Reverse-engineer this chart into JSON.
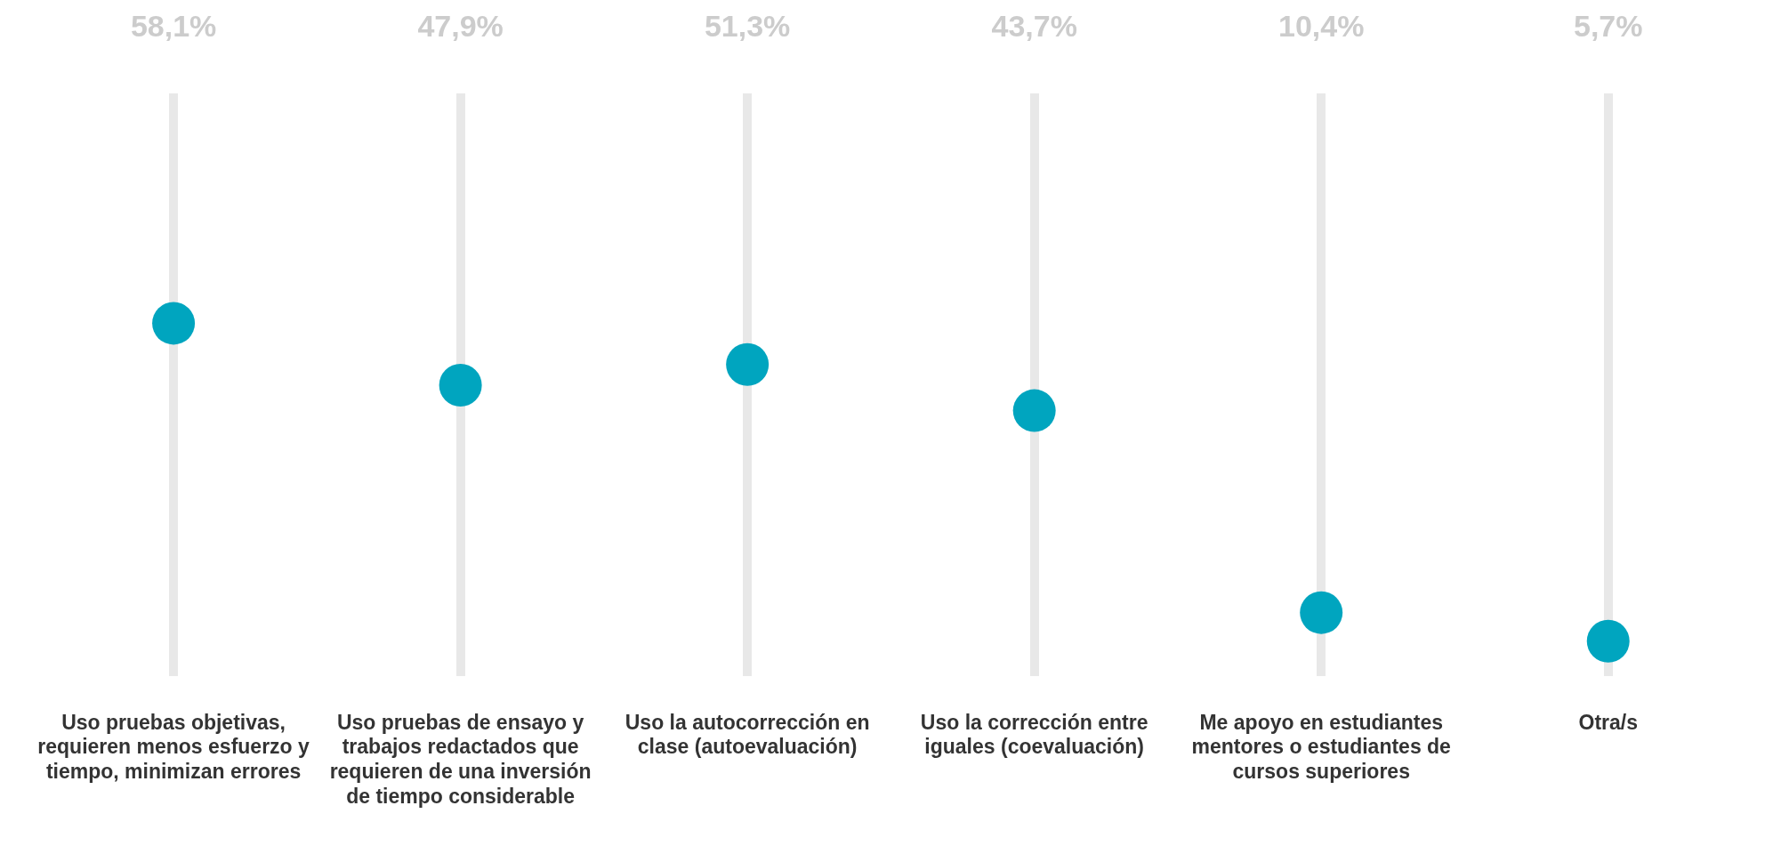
{
  "chart_data": {
    "type": "lollipop",
    "categories": [
      "Uso pruebas objetivas, requieren menos esfuerzo y tiempo, minimizan errores",
      "Uso pruebas de ensayo y trabajos redactados que requieren de una inversión de tiempo considerable",
      "Uso la autocorrección en clase (autoevaluación)",
      "Uso la corrección entre iguales (coevaluación)",
      "Me apoyo en estudiantes mentores o estudiantes de cursos superiores",
      "Otra/s"
    ],
    "values": [
      58.1,
      47.9,
      51.3,
      43.7,
      10.4,
      5.7
    ],
    "value_labels": [
      "58,1%",
      "47,9%",
      "51,3%",
      "43,7%",
      "10,4%",
      "5,7%"
    ],
    "color": "#00a5bf",
    "ylim": [
      0,
      96
    ],
    "grid": "x",
    "legend": false,
    "tick_labels": "x",
    "marker": "circle"
  }
}
